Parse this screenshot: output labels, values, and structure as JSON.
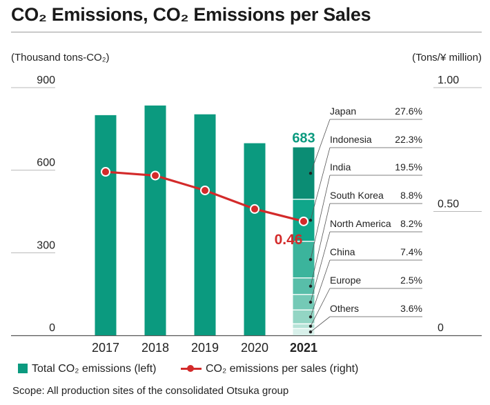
{
  "title": "CO₂ Emissions, CO₂ Emissions per Sales",
  "scope": "Scope: All production sites of the consolidated Otsuka group",
  "colors": {
    "bar": "#0b9a7f",
    "line": "#d32a2a",
    "grid": "#b8b8b8",
    "highlight": "#0b9a7f"
  },
  "legend": {
    "bar_label": "Total CO₂ emissions (left)",
    "line_label": "CO₂ emissions per sales (right)"
  },
  "chart_data": {
    "type": "bar",
    "categories": [
      "2017",
      "2018",
      "2019",
      "2020",
      "2021"
    ],
    "ylabel": "(Thousand tons-CO₂)",
    "y2label": "(Tons/¥ million)",
    "ylim": [
      0,
      900
    ],
    "y2lim": [
      0,
      1.0
    ],
    "yticks": [
      "0",
      "300",
      "600",
      "900"
    ],
    "y2ticks": [
      "0",
      "0.50",
      "1.00"
    ],
    "grid": true,
    "series": [
      {
        "name": "Total CO₂ emissions (left)",
        "kind": "bar",
        "axis": "left",
        "values": [
          800,
          835,
          803,
          698,
          683
        ]
      },
      {
        "name": "CO₂ emissions per sales (right)",
        "kind": "line",
        "axis": "right",
        "values": [
          0.66,
          0.645,
          0.585,
          0.51,
          0.46
        ]
      }
    ],
    "annotations": {
      "bar_2021_label": "683",
      "line_2021_label": "0.46"
    },
    "breakdown_2021": [
      {
        "region": "Japan",
        "share": "27.6%",
        "value": 27.6
      },
      {
        "region": "Indonesia",
        "share": "22.3%",
        "value": 22.3
      },
      {
        "region": "India",
        "share": "19.5%",
        "value": 19.5
      },
      {
        "region": "South Korea",
        "share": "8.8%",
        "value": 8.8
      },
      {
        "region": "North America",
        "share": "8.2%",
        "value": 8.2
      },
      {
        "region": "China",
        "share": "7.4%",
        "value": 7.4
      },
      {
        "region": "Europe",
        "share": "2.5%",
        "value": 2.5
      },
      {
        "region": "Others",
        "share": "3.6%",
        "value": 3.6
      }
    ]
  }
}
